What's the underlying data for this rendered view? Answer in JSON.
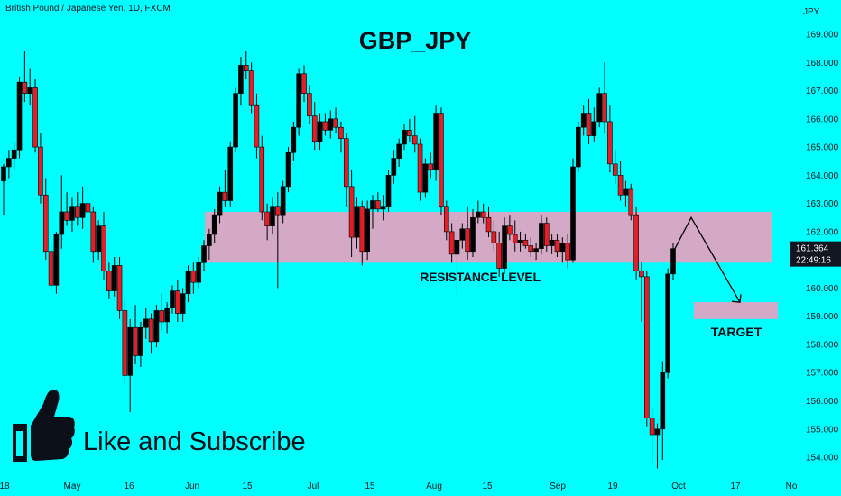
{
  "header": {
    "symbol_text": "British Pound / Japanese Yen, 1D, FXCM"
  },
  "title": "GBP_JPY",
  "cta": {
    "like_text": "Like and Subscribe",
    "icon": "thumbs-up-icon"
  },
  "colors": {
    "background": "#00FFFF",
    "bull": "#000000",
    "bear": "#E41E26",
    "zone": "#D4A9C5",
    "price_label_bg": "#131722"
  },
  "axis": {
    "currency": "JPY",
    "y_ticks": [
      169,
      168,
      167,
      166,
      165,
      164,
      163,
      162,
      161,
      160,
      159,
      158,
      157,
      156,
      155,
      154
    ],
    "y_ticks_text": [
      "169.000",
      "168.000",
      "167.000",
      "166.000",
      "165.000",
      "164.000",
      "163.000",
      "162.000",
      "",
      "160.000",
      "159.000",
      "158.000",
      "157.000",
      "156.000",
      "155.000",
      "154.000"
    ],
    "x_ticks": [
      "18",
      "May",
      "16",
      "Jun",
      "15",
      "Jul",
      "15",
      "Aug",
      "15",
      "Sep",
      "19",
      "Oct",
      "17",
      "No"
    ],
    "last_price": "161.364",
    "countdown": "22:49:16"
  },
  "annotations": {
    "resistance_label": "RESISTANCE LEVEL",
    "target_label": "TARGET"
  },
  "chart_data": {
    "type": "candlestick",
    "title": "GBP_JPY",
    "ylim": [
      153.5,
      169.5
    ],
    "resistance_zone": [
      160.9,
      162.7
    ],
    "target_zone": [
      158.9,
      159.5
    ],
    "projection": [
      [
        0,
        161.4
      ],
      [
        1,
        162.5
      ],
      [
        2,
        159.4
      ]
    ],
    "candles": [
      {
        "o": 163.8,
        "h": 164.4,
        "l": 162.6,
        "c": 164.3
      },
      {
        "o": 164.3,
        "h": 164.9,
        "l": 163.9,
        "c": 164.6
      },
      {
        "o": 164.6,
        "h": 165.2,
        "l": 164.2,
        "c": 164.9
      },
      {
        "o": 164.9,
        "h": 167.5,
        "l": 164.6,
        "c": 167.3
      },
      {
        "o": 167.3,
        "h": 168.4,
        "l": 166.6,
        "c": 166.9
      },
      {
        "o": 166.9,
        "h": 167.8,
        "l": 166.5,
        "c": 167.1
      },
      {
        "o": 167.1,
        "h": 167.4,
        "l": 164.8,
        "c": 165.0
      },
      {
        "o": 165.0,
        "h": 165.5,
        "l": 163.0,
        "c": 163.3
      },
      {
        "o": 163.3,
        "h": 163.9,
        "l": 161.0,
        "c": 161.3
      },
      {
        "o": 161.3,
        "h": 161.6,
        "l": 159.9,
        "c": 160.1
      },
      {
        "o": 160.1,
        "h": 162.0,
        "l": 159.8,
        "c": 161.9
      },
      {
        "o": 161.9,
        "h": 164.0,
        "l": 161.4,
        "c": 162.7
      },
      {
        "o": 162.7,
        "h": 163.4,
        "l": 162.2,
        "c": 162.4
      },
      {
        "o": 162.4,
        "h": 163.2,
        "l": 162.0,
        "c": 162.9
      },
      {
        "o": 162.9,
        "h": 163.4,
        "l": 162.2,
        "c": 162.5
      },
      {
        "o": 162.5,
        "h": 163.6,
        "l": 162.1,
        "c": 163.0
      },
      {
        "o": 163.0,
        "h": 163.6,
        "l": 162.6,
        "c": 162.7
      },
      {
        "o": 162.7,
        "h": 162.9,
        "l": 160.9,
        "c": 161.3
      },
      {
        "o": 161.3,
        "h": 162.4,
        "l": 161.0,
        "c": 162.2
      },
      {
        "o": 162.2,
        "h": 162.7,
        "l": 160.3,
        "c": 160.6
      },
      {
        "o": 160.6,
        "h": 160.9,
        "l": 159.6,
        "c": 159.9
      },
      {
        "o": 159.9,
        "h": 161.1,
        "l": 159.7,
        "c": 160.8
      },
      {
        "o": 160.8,
        "h": 161.1,
        "l": 158.9,
        "c": 159.2
      },
      {
        "o": 159.2,
        "h": 159.6,
        "l": 156.6,
        "c": 156.9
      },
      {
        "o": 156.9,
        "h": 158.9,
        "l": 155.6,
        "c": 158.6
      },
      {
        "o": 158.6,
        "h": 159.4,
        "l": 157.3,
        "c": 157.6
      },
      {
        "o": 157.6,
        "h": 158.8,
        "l": 157.2,
        "c": 158.6
      },
      {
        "o": 158.6,
        "h": 159.3,
        "l": 158.2,
        "c": 158.9
      },
      {
        "o": 158.9,
        "h": 159.1,
        "l": 157.7,
        "c": 158.1
      },
      {
        "o": 158.1,
        "h": 159.4,
        "l": 157.9,
        "c": 159.2
      },
      {
        "o": 159.2,
        "h": 159.8,
        "l": 158.5,
        "c": 158.8
      },
      {
        "o": 158.8,
        "h": 159.5,
        "l": 158.4,
        "c": 159.3
      },
      {
        "o": 159.3,
        "h": 160.1,
        "l": 159.1,
        "c": 159.9
      },
      {
        "o": 159.9,
        "h": 160.3,
        "l": 158.8,
        "c": 159.1
      },
      {
        "o": 159.1,
        "h": 160.0,
        "l": 158.8,
        "c": 159.8
      },
      {
        "o": 159.8,
        "h": 160.8,
        "l": 159.5,
        "c": 160.6
      },
      {
        "o": 160.6,
        "h": 160.9,
        "l": 159.8,
        "c": 160.2
      },
      {
        "o": 160.2,
        "h": 161.1,
        "l": 160.0,
        "c": 160.9
      },
      {
        "o": 160.9,
        "h": 161.7,
        "l": 160.6,
        "c": 161.5
      },
      {
        "o": 161.5,
        "h": 162.1,
        "l": 161.0,
        "c": 161.9
      },
      {
        "o": 161.9,
        "h": 162.8,
        "l": 161.6,
        "c": 162.6
      },
      {
        "o": 162.6,
        "h": 163.6,
        "l": 162.3,
        "c": 163.4
      },
      {
        "o": 163.4,
        "h": 164.2,
        "l": 162.9,
        "c": 163.1
      },
      {
        "o": 163.1,
        "h": 165.2,
        "l": 162.9,
        "c": 165.0
      },
      {
        "o": 165.0,
        "h": 167.1,
        "l": 164.8,
        "c": 166.9
      },
      {
        "o": 166.9,
        "h": 168.2,
        "l": 166.5,
        "c": 167.9
      },
      {
        "o": 167.9,
        "h": 168.4,
        "l": 167.4,
        "c": 167.7
      },
      {
        "o": 167.7,
        "h": 168.0,
        "l": 166.2,
        "c": 166.5
      },
      {
        "o": 166.5,
        "h": 166.9,
        "l": 164.6,
        "c": 165.0
      },
      {
        "o": 165.0,
        "h": 165.4,
        "l": 162.4,
        "c": 162.7
      },
      {
        "o": 162.7,
        "h": 163.0,
        "l": 161.7,
        "c": 162.2
      },
      {
        "o": 162.2,
        "h": 163.2,
        "l": 161.9,
        "c": 162.9
      },
      {
        "o": 162.9,
        "h": 163.4,
        "l": 160.0,
        "c": 162.6
      },
      {
        "o": 162.6,
        "h": 163.8,
        "l": 162.3,
        "c": 163.6
      },
      {
        "o": 163.6,
        "h": 165.0,
        "l": 163.4,
        "c": 164.8
      },
      {
        "o": 164.8,
        "h": 165.9,
        "l": 164.5,
        "c": 165.7
      },
      {
        "o": 165.7,
        "h": 167.8,
        "l": 165.4,
        "c": 167.6
      },
      {
        "o": 167.6,
        "h": 167.9,
        "l": 166.6,
        "c": 166.9
      },
      {
        "o": 166.9,
        "h": 167.2,
        "l": 165.8,
        "c": 166.1
      },
      {
        "o": 166.1,
        "h": 166.6,
        "l": 164.9,
        "c": 165.2
      },
      {
        "o": 165.2,
        "h": 166.2,
        "l": 164.9,
        "c": 165.9
      },
      {
        "o": 165.9,
        "h": 166.2,
        "l": 165.4,
        "c": 165.6
      },
      {
        "o": 165.6,
        "h": 166.3,
        "l": 165.3,
        "c": 166.0
      },
      {
        "o": 166.0,
        "h": 166.4,
        "l": 165.5,
        "c": 165.7
      },
      {
        "o": 165.7,
        "h": 165.9,
        "l": 164.8,
        "c": 165.3
      },
      {
        "o": 165.3,
        "h": 165.5,
        "l": 162.9,
        "c": 163.6
      },
      {
        "o": 163.6,
        "h": 164.2,
        "l": 161.1,
        "c": 161.8
      },
      {
        "o": 161.8,
        "h": 163.2,
        "l": 161.4,
        "c": 162.9
      },
      {
        "o": 162.9,
        "h": 163.1,
        "l": 160.8,
        "c": 161.3
      },
      {
        "o": 161.3,
        "h": 163.1,
        "l": 161.0,
        "c": 162.8
      },
      {
        "o": 162.8,
        "h": 163.3,
        "l": 162.1,
        "c": 163.1
      },
      {
        "o": 163.1,
        "h": 163.4,
        "l": 162.7,
        "c": 162.8
      },
      {
        "o": 162.8,
        "h": 163.3,
        "l": 162.4,
        "c": 162.9
      },
      {
        "o": 162.9,
        "h": 164.2,
        "l": 162.7,
        "c": 164.0
      },
      {
        "o": 164.0,
        "h": 164.9,
        "l": 163.7,
        "c": 164.6
      },
      {
        "o": 164.6,
        "h": 165.3,
        "l": 164.3,
        "c": 165.1
      },
      {
        "o": 165.1,
        "h": 165.8,
        "l": 164.9,
        "c": 165.6
      },
      {
        "o": 165.6,
        "h": 166.0,
        "l": 165.2,
        "c": 165.4
      },
      {
        "o": 165.4,
        "h": 166.1,
        "l": 164.8,
        "c": 165.1
      },
      {
        "o": 165.1,
        "h": 165.3,
        "l": 163.1,
        "c": 163.4
      },
      {
        "o": 163.4,
        "h": 164.6,
        "l": 163.2,
        "c": 164.4
      },
      {
        "o": 164.4,
        "h": 164.8,
        "l": 163.9,
        "c": 164.2
      },
      {
        "o": 164.2,
        "h": 166.5,
        "l": 163.8,
        "c": 166.2
      },
      {
        "o": 166.2,
        "h": 166.4,
        "l": 162.6,
        "c": 162.9
      },
      {
        "o": 162.9,
        "h": 163.1,
        "l": 161.7,
        "c": 162.0
      },
      {
        "o": 162.0,
        "h": 162.3,
        "l": 160.9,
        "c": 161.2
      },
      {
        "o": 161.2,
        "h": 162.0,
        "l": 159.6,
        "c": 161.7
      },
      {
        "o": 161.7,
        "h": 162.3,
        "l": 161.4,
        "c": 162.1
      },
      {
        "o": 162.1,
        "h": 162.9,
        "l": 161.0,
        "c": 161.3
      },
      {
        "o": 161.3,
        "h": 162.8,
        "l": 161.1,
        "c": 162.5
      },
      {
        "o": 162.5,
        "h": 163.1,
        "l": 162.3,
        "c": 162.7
      },
      {
        "o": 162.7,
        "h": 163.0,
        "l": 162.3,
        "c": 162.5
      },
      {
        "o": 162.5,
        "h": 162.9,
        "l": 161.8,
        "c": 162.0
      },
      {
        "o": 162.0,
        "h": 162.4,
        "l": 161.3,
        "c": 161.6
      },
      {
        "o": 161.6,
        "h": 162.0,
        "l": 160.4,
        "c": 160.7
      },
      {
        "o": 160.7,
        "h": 162.5,
        "l": 160.5,
        "c": 162.2
      },
      {
        "o": 162.2,
        "h": 162.6,
        "l": 161.7,
        "c": 161.9
      },
      {
        "o": 161.9,
        "h": 162.4,
        "l": 161.3,
        "c": 161.6
      },
      {
        "o": 161.6,
        "h": 162.0,
        "l": 161.3,
        "c": 161.7
      },
      {
        "o": 161.7,
        "h": 161.9,
        "l": 161.4,
        "c": 161.5
      },
      {
        "o": 161.5,
        "h": 161.8,
        "l": 161.1,
        "c": 161.3
      },
      {
        "o": 161.3,
        "h": 161.6,
        "l": 161.0,
        "c": 161.4
      },
      {
        "o": 161.4,
        "h": 162.6,
        "l": 161.2,
        "c": 162.3
      },
      {
        "o": 162.3,
        "h": 162.5,
        "l": 161.3,
        "c": 161.5
      },
      {
        "o": 161.5,
        "h": 161.9,
        "l": 161.2,
        "c": 161.7
      },
      {
        "o": 161.7,
        "h": 161.9,
        "l": 161.1,
        "c": 161.3
      },
      {
        "o": 161.3,
        "h": 161.8,
        "l": 160.9,
        "c": 161.6
      },
      {
        "o": 161.6,
        "h": 161.9,
        "l": 160.7,
        "c": 161.0
      },
      {
        "o": 161.0,
        "h": 164.6,
        "l": 160.9,
        "c": 164.3
      },
      {
        "o": 164.3,
        "h": 165.9,
        "l": 164.1,
        "c": 165.7
      },
      {
        "o": 165.7,
        "h": 166.5,
        "l": 165.4,
        "c": 166.2
      },
      {
        "o": 166.2,
        "h": 166.7,
        "l": 165.1,
        "c": 165.4
      },
      {
        "o": 165.4,
        "h": 166.4,
        "l": 165.2,
        "c": 165.9
      },
      {
        "o": 165.9,
        "h": 167.1,
        "l": 165.7,
        "c": 166.9
      },
      {
        "o": 166.9,
        "h": 168.0,
        "l": 165.5,
        "c": 165.9
      },
      {
        "o": 165.9,
        "h": 166.5,
        "l": 164.1,
        "c": 164.4
      },
      {
        "o": 164.4,
        "h": 164.9,
        "l": 163.7,
        "c": 164.0
      },
      {
        "o": 164.0,
        "h": 164.5,
        "l": 163.1,
        "c": 163.3
      },
      {
        "o": 163.3,
        "h": 163.8,
        "l": 162.9,
        "c": 163.5
      },
      {
        "o": 163.5,
        "h": 163.7,
        "l": 162.4,
        "c": 162.6
      },
      {
        "o": 162.6,
        "h": 162.9,
        "l": 160.3,
        "c": 160.6
      },
      {
        "o": 160.6,
        "h": 160.9,
        "l": 158.8,
        "c": 160.4
      },
      {
        "o": 160.4,
        "h": 160.6,
        "l": 155.1,
        "c": 155.4
      },
      {
        "o": 155.4,
        "h": 155.7,
        "l": 153.8,
        "c": 154.8
      },
      {
        "o": 154.8,
        "h": 155.2,
        "l": 153.6,
        "c": 155.0
      },
      {
        "o": 155.0,
        "h": 157.4,
        "l": 153.9,
        "c": 157.0
      },
      {
        "o": 157.0,
        "h": 160.7,
        "l": 156.8,
        "c": 160.5
      },
      {
        "o": 160.5,
        "h": 161.6,
        "l": 160.3,
        "c": 161.4
      }
    ]
  }
}
